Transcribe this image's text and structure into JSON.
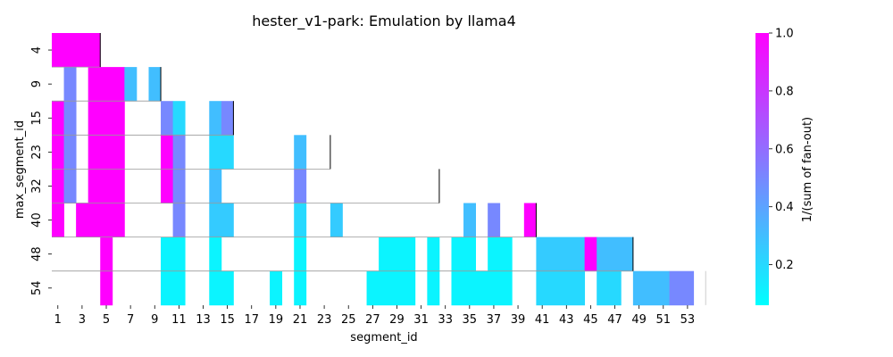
{
  "chart_data": {
    "type": "heatmap",
    "title": "hester_v1-park: Emulation by llama4",
    "xlabel": "segment_id",
    "ylabel": "max_segment_id",
    "colorbar_label": "1/(sum of fan-out)",
    "x_tick_labels": [
      "1",
      "3",
      "5",
      "7",
      "9",
      "11",
      "13",
      "15",
      "17",
      "19",
      "21",
      "23",
      "25",
      "27",
      "29",
      "31",
      "33",
      "35",
      "37",
      "39",
      "41",
      "43",
      "45",
      "47",
      "49",
      "51",
      "53"
    ],
    "y_tick_labels": [
      "4",
      "9",
      "15",
      "23",
      "32",
      "40",
      "48",
      "54"
    ],
    "colorbar_ticks": [
      "0.2",
      "0.4",
      "0.6",
      "0.8",
      "1.0"
    ],
    "colorbar_range": [
      0.06,
      1.0
    ],
    "colormap": [
      "#00ffff",
      "#ff00ff"
    ],
    "rows": [
      {
        "max_segment_id": 4,
        "cells": [
          [
            1,
            4,
            1.0
          ]
        ]
      },
      {
        "max_segment_id": 9,
        "cells": [
          [
            2,
            2,
            0.5
          ],
          [
            4,
            6,
            1.0
          ],
          [
            7,
            7,
            0.3
          ],
          [
            9,
            9,
            0.3
          ]
        ]
      },
      {
        "max_segment_id": 15,
        "cells": [
          [
            1,
            1,
            1.0
          ],
          [
            2,
            2,
            0.5
          ],
          [
            4,
            6,
            1.0
          ],
          [
            10,
            10,
            0.5
          ],
          [
            11,
            11,
            0.2
          ],
          [
            14,
            14,
            0.3
          ],
          [
            15,
            15,
            0.5
          ]
        ]
      },
      {
        "max_segment_id": 23,
        "cells": [
          [
            1,
            1,
            1.0
          ],
          [
            2,
            2,
            0.5
          ],
          [
            4,
            6,
            1.0
          ],
          [
            10,
            10,
            1.0
          ],
          [
            11,
            11,
            0.5
          ],
          [
            14,
            15,
            0.2
          ],
          [
            21,
            21,
            0.3
          ]
        ]
      },
      {
        "max_segment_id": 32,
        "cells": [
          [
            1,
            1,
            1.0
          ],
          [
            2,
            2,
            0.5
          ],
          [
            4,
            6,
            1.0
          ],
          [
            10,
            10,
            1.0
          ],
          [
            11,
            11,
            0.5
          ],
          [
            14,
            14,
            0.3
          ],
          [
            21,
            21,
            0.5
          ]
        ]
      },
      {
        "max_segment_id": 40,
        "cells": [
          [
            1,
            1,
            1.0
          ],
          [
            3,
            6,
            1.0
          ],
          [
            11,
            11,
            0.5
          ],
          [
            14,
            15,
            0.25
          ],
          [
            21,
            21,
            0.2
          ],
          [
            24,
            24,
            0.25
          ],
          [
            35,
            35,
            0.3
          ],
          [
            37,
            37,
            0.5
          ],
          [
            40,
            40,
            1.0
          ]
        ]
      },
      {
        "max_segment_id": 48,
        "cells": [
          [
            5,
            5,
            1.0
          ],
          [
            10,
            11,
            0.1
          ],
          [
            14,
            14,
            0.1
          ],
          [
            21,
            21,
            0.1
          ],
          [
            28,
            30,
            0.1
          ],
          [
            32,
            32,
            0.1
          ],
          [
            34,
            35,
            0.1
          ],
          [
            37,
            38,
            0.1
          ],
          [
            41,
            44,
            0.25
          ],
          [
            45,
            45,
            1.0
          ],
          [
            46,
            48,
            0.3
          ]
        ]
      },
      {
        "max_segment_id": 54,
        "cells": [
          [
            5,
            5,
            1.0
          ],
          [
            10,
            11,
            0.1
          ],
          [
            14,
            15,
            0.1
          ],
          [
            19,
            19,
            0.1
          ],
          [
            21,
            21,
            0.1
          ],
          [
            27,
            30,
            0.1
          ],
          [
            32,
            32,
            0.1
          ],
          [
            34,
            38,
            0.1
          ],
          [
            41,
            44,
            0.2
          ],
          [
            46,
            47,
            0.2
          ],
          [
            49,
            51,
            0.3
          ],
          [
            52,
            53,
            0.5
          ]
        ]
      }
    ],
    "row_boundaries": [
      4,
      9,
      15,
      23,
      32,
      40,
      48,
      54
    ]
  }
}
